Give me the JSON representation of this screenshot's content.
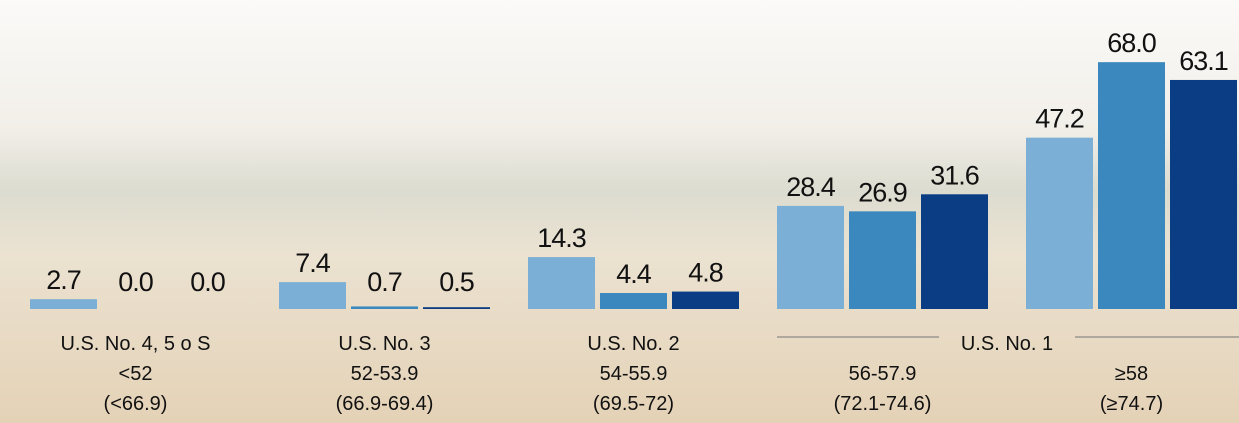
{
  "chart_data": {
    "type": "bar",
    "categories": [
      [
        "U.S. No. 4, 5 o S",
        "<52",
        "(<66.9)"
      ],
      [
        "U.S. No. 3",
        "52-53.9",
        "(66.9-69.4)"
      ],
      [
        "U.S. No. 2",
        "54-55.9",
        "(69.5-72)"
      ],
      [
        "56-57.9",
        "(72.1-74.6)"
      ],
      [
        "≥58",
        "(≥74.7)"
      ]
    ],
    "group_label": "U.S. No. 1",
    "series": [
      {
        "color": "#7bafd6",
        "values": [
          2.7,
          7.4,
          14.3,
          28.4,
          47.2
        ],
        "value_labels": [
          "2.7",
          "7.4",
          "14.3",
          "28.4",
          "47.2"
        ]
      },
      {
        "color": "#3a88be",
        "values": [
          0,
          0.7,
          4.4,
          26.9,
          68
        ],
        "value_labels": [
          "0.0",
          "0.7",
          "4.4",
          "26.9",
          "68.0"
        ]
      },
      {
        "color": "#0b3d84",
        "values": [
          0,
          0.5,
          4.8,
          31.6,
          63.1
        ],
        "value_labels": [
          "0.0",
          "0.5",
          "4.8",
          "31.6",
          "63.1"
        ]
      }
    ]
  }
}
